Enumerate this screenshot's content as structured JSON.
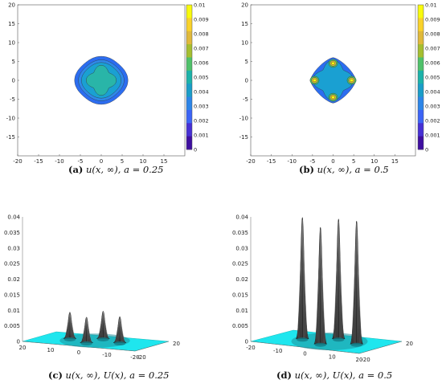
{
  "chart_data": [
    {
      "id": "a",
      "type": "contour",
      "caption": {
        "label": "(a)",
        "math": "u(x, ∞), a = 0.25"
      },
      "xticks": [
        "-20",
        "-15",
        "-10",
        "-5",
        "0",
        "5",
        "10",
        "15"
      ],
      "yticks": [
        "20",
        "15",
        "10",
        "5",
        "0",
        "-5",
        "-10",
        "-15"
      ],
      "xlim": [
        -20,
        20
      ],
      "ylim": [
        -20,
        20
      ],
      "colorbar": {
        "ticks": [
          "0.01",
          "0.009",
          "0.008",
          "0.007",
          "0.006",
          "0.005",
          "0.004",
          "0.003",
          "0.002",
          "0.001",
          "0"
        ],
        "colors": [
          "#f8fa0d",
          "#f9d22a",
          "#e0b93a",
          "#a5be2f",
          "#4fc16a",
          "#1cb2a9",
          "#1a9dc8",
          "#2c85e8",
          "#3c64f6",
          "#4630d4",
          "#3e0fa0"
        ]
      },
      "levels": [
        {
          "value": 0.001,
          "shape": "circle",
          "r": 6.2,
          "color": "#2c6df0"
        },
        {
          "value": 0.002,
          "shape": "circle",
          "r": 5.3,
          "color": "#2e88e8"
        },
        {
          "value": 0.003,
          "shape": "circle",
          "r": 4.6,
          "color": "#1aa0d2"
        },
        {
          "value": 0.004,
          "shape": "star",
          "r": 3.6,
          "color": "#29b5a8"
        }
      ]
    },
    {
      "id": "b",
      "type": "contour",
      "caption": {
        "label": "(b)",
        "math": "u(x, ∞), a = 0.5"
      },
      "xticks": [
        "-20",
        "-15",
        "-10",
        "-5",
        "0",
        "5",
        "10",
        "15"
      ],
      "yticks": [
        "20",
        "15",
        "10",
        "5",
        "0",
        "-5",
        "-10",
        "-15"
      ],
      "xlim": [
        -20,
        20
      ],
      "ylim": [
        -20,
        20
      ],
      "colorbar": {
        "ticks": [
          "0.01",
          "0.009",
          "0.008",
          "0.007",
          "0.006",
          "0.005",
          "0.004",
          "0.003",
          "0.002",
          "0.001",
          "0"
        ],
        "colors": [
          "#f8fa0d",
          "#f9d22a",
          "#e0b93a",
          "#a5be2f",
          "#4fc16a",
          "#1cb2a9",
          "#1a9dc8",
          "#2c85e8",
          "#3c64f6",
          "#4630d4",
          "#3e0fa0"
        ]
      },
      "levels": [
        {
          "value": 0.001,
          "shape": "diamond",
          "r": 6.0,
          "color": "#2c6df0"
        },
        {
          "value": 0.003,
          "shape": "star",
          "r": 4.9,
          "color": "#1aa0d2"
        },
        {
          "value": 0.006,
          "shape": "spots",
          "r": 1.1,
          "color": "#4fc16a"
        },
        {
          "value": 0.008,
          "shape": "spots",
          "r": 0.75,
          "color": "#e0b93a"
        },
        {
          "value": 0.01,
          "shape": "spots",
          "r": 0.4,
          "color": "#f8fa0d"
        }
      ],
      "peaks": [
        [
          0,
          4.5
        ],
        [
          -4.5,
          0
        ],
        [
          4.5,
          0
        ],
        [
          0,
          -4.5
        ]
      ]
    },
    {
      "id": "c",
      "type": "surface",
      "caption": {
        "label": "(c)",
        "math": "u(x, ∞), U(x), a = 0.25"
      },
      "zticks": [
        "0.04",
        "0.035",
        "0.03",
        "0.025",
        "0.02",
        "0.015",
        "0.01",
        "0.005",
        "0"
      ],
      "zlim": [
        0,
        0.04
      ],
      "left_axis_ticks": [
        "20",
        "10",
        "0",
        "-10",
        "-20"
      ],
      "right_axis_ticks": [
        "-20",
        "20"
      ],
      "peaks": [
        {
          "pos": -1.5,
          "depth": 0.3,
          "height": 0.0085
        },
        {
          "pos": -0.5,
          "depth": 0.7,
          "height": 0.0082
        },
        {
          "pos": 0.5,
          "depth": 0.3,
          "height": 0.0088
        },
        {
          "pos": 1.5,
          "depth": 0.7,
          "height": 0.0084
        }
      ],
      "plane_color": "#1fe6ee"
    },
    {
      "id": "d",
      "type": "surface",
      "caption": {
        "label": "(d)",
        "math": "u(x, ∞), U(x), a = 0.5"
      },
      "zticks": [
        "0.04",
        "0.035",
        "0.03",
        "0.025",
        "0.02",
        "0.015",
        "0.01",
        "0.005",
        "0"
      ],
      "zlim": [
        0,
        0.04
      ],
      "left_axis_ticks": [
        "-20",
        "-10",
        "0",
        "10",
        "20"
      ],
      "right_axis_ticks": [
        "-20",
        "20"
      ],
      "peaks": [
        {
          "pos": -1.5,
          "depth": 0.3,
          "height": 0.039
        },
        {
          "pos": -0.5,
          "depth": 0.7,
          "height": 0.0375
        },
        {
          "pos": 0.5,
          "depth": 0.3,
          "height": 0.0385
        },
        {
          "pos": 1.5,
          "depth": 0.7,
          "height": 0.0395
        }
      ],
      "plane_color": "#1fe6ee"
    }
  ]
}
